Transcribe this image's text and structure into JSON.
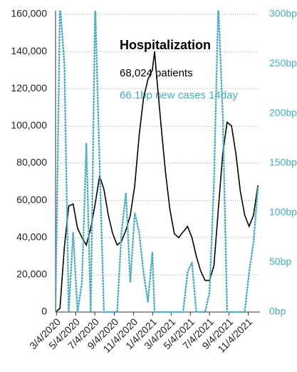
{
  "chart_data": {
    "type": "line",
    "annotations": [
      "Hospitalization",
      "68,024 patients",
      "66.1bp new cases 14day"
    ],
    "x": [
      "3/1/2020",
      "3/15/2020",
      "3/29/2020",
      "4/12/2020",
      "4/26/2020",
      "5/10/2020",
      "5/24/2020",
      "6/7/2020",
      "6/21/2020",
      "7/5/2020",
      "7/19/2020",
      "8/2/2020",
      "8/16/2020",
      "8/30/2020",
      "9/13/2020",
      "9/27/2020",
      "10/11/2020",
      "10/25/2020",
      "11/8/2020",
      "11/22/2020",
      "12/6/2020",
      "12/20/2020",
      "1/3/2021",
      "1/10/2021",
      "1/17/2021",
      "1/31/2021",
      "2/14/2021",
      "2/28/2021",
      "3/14/2021",
      "3/28/2021",
      "4/11/2021",
      "4/25/2021",
      "5/9/2021",
      "5/23/2021",
      "6/6/2021",
      "6/20/2021",
      "7/4/2021",
      "7/18/2021",
      "8/1/2021",
      "8/15/2021",
      "8/29/2021",
      "9/12/2021",
      "9/26/2021",
      "10/10/2021",
      "10/24/2021",
      "11/7/2021",
      "11/21/2021",
      "12/5/2021"
    ],
    "xlim": [
      "3/1/2020",
      "12/7/2021"
    ],
    "xticks": [
      "3/4/2020",
      "5/4/2020",
      "7/4/2020",
      "9/4/2020",
      "11/4/2020",
      "1/4/2021",
      "3/4/2021",
      "5/4/2021",
      "7/4/2021",
      "9/4/2021",
      "11/4/2021"
    ],
    "series": [
      {
        "color": "#000000",
        "values": [
          0,
          2000,
          35000,
          57000,
          58000,
          45000,
          40000,
          36000,
          45000,
          58000,
          73000,
          66000,
          52000,
          42000,
          36000,
          38000,
          44000,
          52000,
          68000,
          95000,
          115000,
          125000,
          130000,
          140000,
          126000,
          100000,
          75000,
          55000,
          42000,
          40000,
          43000,
          46000,
          40000,
          30000,
          22000,
          17000,
          17000,
          25000,
          55000,
          85000,
          102000,
          100000,
          85000,
          65000,
          52000,
          46000,
          52000,
          68000
        ]
      },
      {
        "color": "#4aabc0",
        "axis": "y2",
        "values": [
          0,
          310,
          250,
          0,
          80,
          0,
          30,
          170,
          0,
          310,
          150,
          0,
          0,
          0,
          0,
          80,
          120,
          30,
          100,
          80,
          40,
          10,
          60,
          0,
          0,
          0,
          0,
          0,
          0,
          0,
          0,
          40,
          50,
          0,
          0,
          0,
          20,
          130,
          310,
          200,
          0,
          0,
          0,
          0,
          0,
          40,
          70,
          125
        ]
      }
    ],
    "ylim": [
      0,
      160000
    ],
    "yticks": [
      0,
      {
        "value": 20000,
        "label": "20,000"
      },
      {
        "value": 40000,
        "label": "40,000"
      },
      {
        "value": 60000,
        "label": "60,000"
      },
      {
        "value": 80000,
        "label": "80,000"
      },
      {
        "value": 100000,
        "label": "100,000"
      },
      {
        "value": 120000,
        "label": "120,000"
      },
      {
        "value": 140000,
        "label": "140,000"
      },
      {
        "value": 160000,
        "label": "160,000"
      }
    ],
    "y2lim": [
      0,
      300
    ],
    "y2ticks": [
      {
        "value": 0,
        "label": "0bp"
      },
      {
        "value": 50,
        "label": "50bp"
      },
      {
        "value": 100,
        "label": "100bp"
      },
      {
        "value": 150,
        "label": "150bp"
      },
      {
        "value": 200,
        "label": "200bp"
      },
      {
        "value": 250,
        "label": "250bp"
      },
      {
        "value": 300,
        "label": "300bp"
      }
    ],
    "grid": true
  }
}
